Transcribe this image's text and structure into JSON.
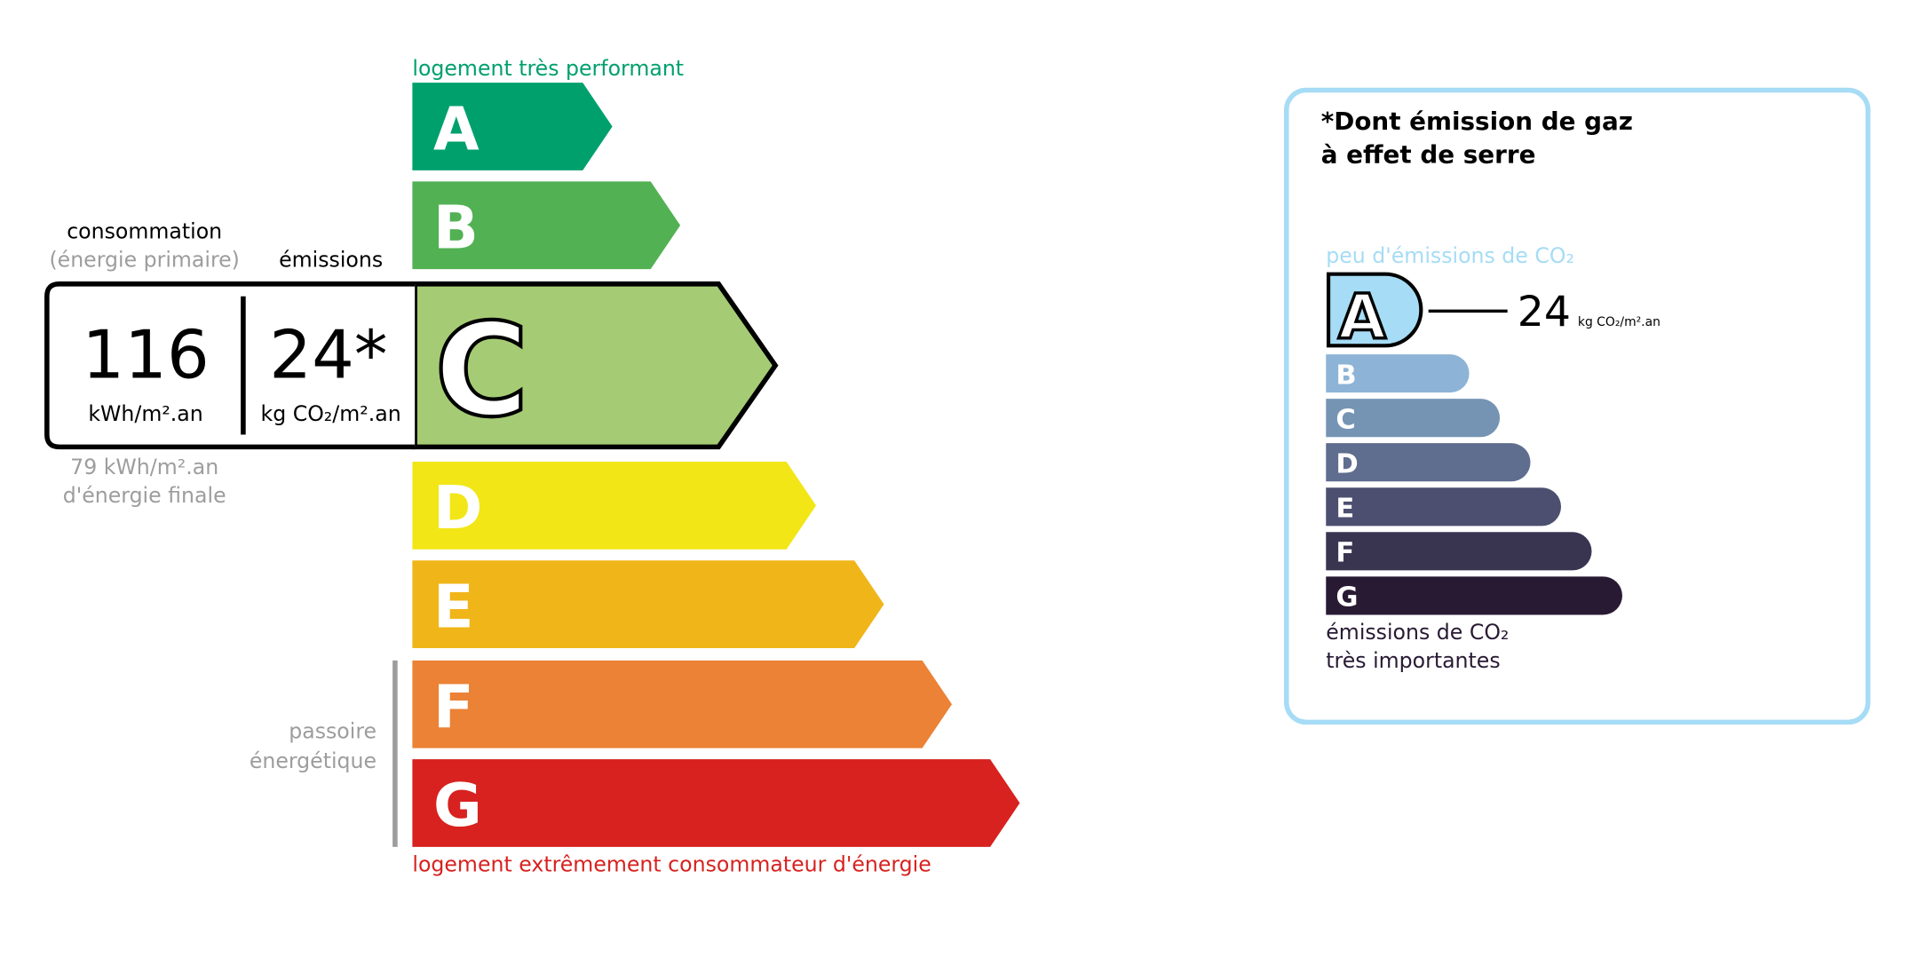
{
  "energy": {
    "top_label": "logement très performant",
    "bottom_label": "logement extrêmement consommateur d'énergie",
    "passoire_line1": "passoire",
    "passoire_line2": "énergétique",
    "current_class": "C",
    "classes": [
      {
        "letter": "A",
        "color": "#00a06d"
      },
      {
        "letter": "B",
        "color": "#52b153"
      },
      {
        "letter": "C",
        "color": "#a5cc74"
      },
      {
        "letter": "D",
        "color": "#f2e617"
      },
      {
        "letter": "E",
        "color": "#f0b519"
      },
      {
        "letter": "F",
        "color": "#eb8235"
      },
      {
        "letter": "G",
        "color": "#d7221f"
      }
    ],
    "consumption_label": "consommation",
    "consumption_sub": "(énergie primaire)",
    "emissions_label": "émissions",
    "consumption_value": "116",
    "consumption_unit": "kWh/m².an",
    "emissions_value": "24*",
    "emissions_unit": "kg CO₂/m².an",
    "final_energy_value": "79 kWh/m².an",
    "final_energy_label": "d'énergie finale"
  },
  "ges": {
    "title_line1": "*Dont émission de gaz",
    "title_line2": "à effet de serre",
    "top_label": "peu d'émissions de CO₂",
    "bottom_line1": "émissions de CO₂",
    "bottom_line2": "très importantes",
    "current_class": "A",
    "value": "24",
    "unit": "kg CO₂/m².an",
    "border_color": "#a6dcf5",
    "classes": [
      {
        "letter": "A",
        "color": "#a6dcf5"
      },
      {
        "letter": "B",
        "color": "#8db3d6"
      },
      {
        "letter": "C",
        "color": "#7594b4"
      },
      {
        "letter": "D",
        "color": "#5f6d8f"
      },
      {
        "letter": "E",
        "color": "#4c4f6f"
      },
      {
        "letter": "F",
        "color": "#393551"
      },
      {
        "letter": "G",
        "color": "#291a34"
      }
    ]
  }
}
